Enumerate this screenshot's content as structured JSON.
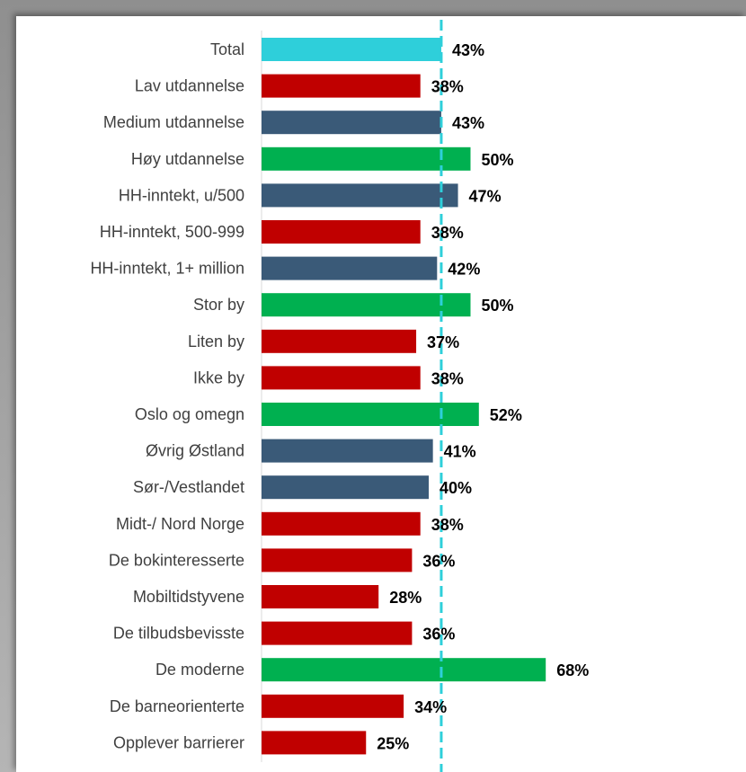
{
  "chart_data": {
    "type": "bar",
    "orientation": "horizontal",
    "categories": [
      "Total",
      "Lav utdannelse",
      "Medium utdannelse",
      "Høy utdannelse",
      "HH-inntekt, u/500",
      "HH-inntekt, 500-999",
      "HH-inntekt, 1+ million",
      "Stor by",
      "Liten by",
      "Ikke by",
      "Oslo og omegn",
      "Øvrig Østland",
      "Sør-/Vestlandet",
      "Midt-/ Nord Norge",
      "De bokinteresserte",
      "Mobiltidstyvene",
      "De tilbudsbevisste",
      "De moderne",
      "De barneorienterte",
      "Opplever barrierer"
    ],
    "values": [
      43,
      38,
      43,
      50,
      47,
      38,
      42,
      50,
      37,
      38,
      52,
      41,
      40,
      38,
      36,
      28,
      36,
      68,
      34,
      25
    ],
    "value_labels": [
      "43%",
      "38%",
      "43%",
      "50%",
      "47%",
      "38%",
      "42%",
      "50%",
      "37%",
      "38%",
      "52%",
      "41%",
      "40%",
      "38%",
      "36%",
      "28%",
      "36%",
      "68%",
      "34%",
      "25%"
    ],
    "bar_colors": [
      "#2ECFDA",
      "#C00000",
      "#3A5A78",
      "#00B050",
      "#3A5A78",
      "#C00000",
      "#3A5A78",
      "#00B050",
      "#C00000",
      "#C00000",
      "#00B050",
      "#3A5A78",
      "#3A5A78",
      "#C00000",
      "#C00000",
      "#C00000",
      "#C00000",
      "#00B050",
      "#C00000",
      "#C00000"
    ],
    "reference_line": {
      "value": 43,
      "style": "dashed",
      "color": "#2ECFDA"
    },
    "xlim": [
      0,
      100
    ],
    "grid": false,
    "legend": "none",
    "title": "",
    "xlabel": "",
    "ylabel": ""
  }
}
